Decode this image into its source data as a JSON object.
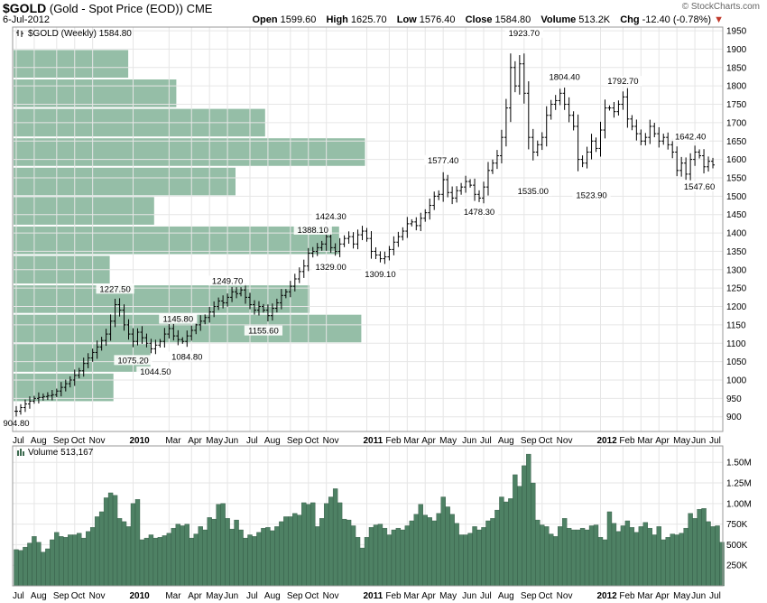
{
  "header": {
    "symbol": "$GOLD",
    "description": "(Gold - Spot Price (EOD))",
    "exchange": "CME",
    "date": "6-Jul-2012",
    "credit": "© StockCharts.com",
    "open_label": "Open",
    "open": "1599.60",
    "high_label": "High",
    "high": "1625.70",
    "low_label": "Low",
    "low": "1576.40",
    "close_label": "Close",
    "close": "1584.80",
    "volume_label": "Volume",
    "volume": "513.2K",
    "chg_label": "Chg",
    "chg": "-12.40 (-0.78%)"
  },
  "chart_data": [
    {
      "type": "ohlc-bar",
      "legend": "$GOLD (Weekly) 1584.80",
      "ylim": [
        860,
        1960
      ],
      "y_ticks": [
        900,
        950,
        1000,
        1050,
        1100,
        1150,
        1200,
        1250,
        1300,
        1350,
        1400,
        1450,
        1500,
        1550,
        1600,
        1650,
        1700,
        1750,
        1800,
        1850,
        1900,
        1950
      ],
      "x_ticks": [
        {
          "label": "Jul",
          "week": 0
        },
        {
          "label": "Aug",
          "week": 4
        },
        {
          "label": "Sep",
          "week": 9
        },
        {
          "label": "Oct",
          "week": 13
        },
        {
          "label": "Nov",
          "week": 17
        },
        {
          "label": "2010",
          "week": 26,
          "bold": true
        },
        {
          "label": "Mar",
          "week": 34
        },
        {
          "label": "Apr",
          "week": 39
        },
        {
          "label": "May",
          "week": 43
        },
        {
          "label": "Jun",
          "week": 47
        },
        {
          "label": "Jul",
          "week": 52
        },
        {
          "label": "Aug",
          "week": 56
        },
        {
          "label": "Sep",
          "week": 61
        },
        {
          "label": "Oct",
          "week": 65
        },
        {
          "label": "Nov",
          "week": 69
        },
        {
          "label": "2011",
          "week": 78,
          "bold": true
        },
        {
          "label": "Feb",
          "week": 83
        },
        {
          "label": "Mar",
          "week": 87
        },
        {
          "label": "Apr",
          "week": 91
        },
        {
          "label": "May",
          "week": 95
        },
        {
          "label": "Jun",
          "week": 100
        },
        {
          "label": "Jul",
          "week": 104
        },
        {
          "label": "Aug",
          "week": 108
        },
        {
          "label": "Sep",
          "week": 113
        },
        {
          "label": "Oct",
          "week": 117
        },
        {
          "label": "Nov",
          "week": 121
        },
        {
          "label": "2012",
          "week": 130,
          "bold": true
        },
        {
          "label": "Feb",
          "week": 135
        },
        {
          "label": "Mar",
          "week": 139
        },
        {
          "label": "Apr",
          "week": 143
        },
        {
          "label": "May",
          "week": 147
        },
        {
          "label": "Jun",
          "week": 151
        },
        {
          "label": "Jul",
          "week": 155
        }
      ],
      "close_path": [
        [
          0,
          915
        ],
        [
          2,
          935
        ],
        [
          4,
          950
        ],
        [
          6,
          955
        ],
        [
          8,
          960
        ],
        [
          10,
          980
        ],
        [
          12,
          1000
        ],
        [
          14,
          1025
        ],
        [
          15,
          1045
        ],
        [
          16,
          1060
        ],
        [
          18,
          1090
        ],
        [
          20,
          1125
        ],
        [
          21,
          1160
        ],
        [
          22,
          1205
        ],
        [
          23,
          1190
        ],
        [
          24,
          1150
        ],
        [
          25,
          1125
        ],
        [
          26,
          1105
        ],
        [
          27,
          1130
        ],
        [
          28,
          1115
        ],
        [
          29,
          1100
        ],
        [
          30,
          1085
        ],
        [
          31,
          1095
        ],
        [
          32,
          1105
        ],
        [
          33,
          1125
        ],
        [
          34,
          1140
        ],
        [
          35,
          1120
        ],
        [
          36,
          1110
        ],
        [
          37,
          1105
        ],
        [
          38,
          1120
        ],
        [
          40,
          1150
        ],
        [
          42,
          1170
        ],
        [
          44,
          1200
        ],
        [
          45,
          1215
        ],
        [
          46,
          1210
        ],
        [
          47,
          1225
        ],
        [
          48,
          1240
        ],
        [
          49,
          1235
        ],
        [
          50,
          1245
        ],
        [
          51,
          1225
        ],
        [
          52,
          1205
        ],
        [
          53,
          1190
        ],
        [
          54,
          1200
        ],
        [
          55,
          1190
        ],
        [
          56,
          1175
        ],
        [
          57,
          1195
        ],
        [
          58,
          1210
        ],
        [
          59,
          1230
        ],
        [
          60,
          1240
        ],
        [
          61,
          1255
        ],
        [
          62,
          1275
        ],
        [
          63,
          1295
        ],
        [
          64,
          1310
        ],
        [
          65,
          1345
        ],
        [
          66,
          1350
        ],
        [
          67,
          1360
        ],
        [
          68,
          1370
        ],
        [
          69,
          1390
        ],
        [
          70,
          1360
        ],
        [
          71,
          1350
        ],
        [
          72,
          1370
        ],
        [
          73,
          1385
        ],
        [
          74,
          1390
        ],
        [
          75,
          1370
        ],
        [
          76,
          1395
        ],
        [
          77,
          1405
        ],
        [
          78,
          1385
        ],
        [
          79,
          1350
        ],
        [
          80,
          1340
        ],
        [
          81,
          1330
        ],
        [
          82,
          1335
        ],
        [
          83,
          1355
        ],
        [
          84,
          1375
        ],
        [
          85,
          1390
        ],
        [
          86,
          1405
        ],
        [
          87,
          1425
        ],
        [
          88,
          1430
        ],
        [
          89,
          1420
        ],
        [
          90,
          1440
        ],
        [
          91,
          1455
        ],
        [
          92,
          1475
        ],
        [
          93,
          1500
        ],
        [
          94,
          1505
        ],
        [
          95,
          1545
        ],
        [
          96,
          1510
        ],
        [
          97,
          1495
        ],
        [
          98,
          1515
        ],
        [
          99,
          1525
        ],
        [
          100,
          1540
        ],
        [
          101,
          1530
        ],
        [
          102,
          1505
        ],
        [
          103,
          1495
        ],
        [
          104,
          1525
        ],
        [
          105,
          1570
        ],
        [
          106,
          1590
        ],
        [
          107,
          1610
        ],
        [
          108,
          1660
        ],
        [
          109,
          1740
        ],
        [
          110,
          1850
        ],
        [
          111,
          1800
        ],
        [
          112,
          1860
        ],
        [
          113,
          1780
        ],
        [
          114,
          1660
        ],
        [
          115,
          1620
        ],
        [
          116,
          1640
        ],
        [
          117,
          1660
        ],
        [
          118,
          1720
        ],
        [
          119,
          1750
        ],
        [
          120,
          1760
        ],
        [
          121,
          1780
        ],
        [
          122,
          1750
        ],
        [
          123,
          1720
        ],
        [
          124,
          1690
        ],
        [
          125,
          1600
        ],
        [
          126,
          1590
        ],
        [
          127,
          1620
        ],
        [
          128,
          1650
        ],
        [
          129,
          1630
        ],
        [
          130,
          1680
        ],
        [
          131,
          1740
        ],
        [
          132,
          1740
        ],
        [
          133,
          1730
        ],
        [
          134,
          1750
        ],
        [
          135,
          1770
        ],
        [
          136,
          1710
        ],
        [
          137,
          1690
        ],
        [
          138,
          1670
        ],
        [
          139,
          1650
        ],
        [
          140,
          1660
        ],
        [
          141,
          1690
        ],
        [
          142,
          1670
        ],
        [
          143,
          1650
        ],
        [
          144,
          1660
        ],
        [
          145,
          1640
        ],
        [
          146,
          1620
        ],
        [
          147,
          1570
        ],
        [
          148,
          1590
        ],
        [
          149,
          1560
        ],
        [
          150,
          1600
        ],
        [
          151,
          1620
        ],
        [
          152,
          1610
        ],
        [
          153,
          1580
        ],
        [
          154,
          1595
        ],
        [
          155,
          1585
        ]
      ],
      "annotations": [
        {
          "text": "904.80",
          "week": 0,
          "value": 904.8,
          "pos": "below"
        },
        {
          "text": "1227.50",
          "week": 22,
          "value": 1227.5,
          "pos": "above"
        },
        {
          "text": "1075.20",
          "week": 26,
          "value": 1075.2,
          "pos": "below"
        },
        {
          "text": "1044.50",
          "week": 31,
          "value": 1044.5,
          "pos": "below"
        },
        {
          "text": "1145.80",
          "week": 36,
          "value": 1145.8,
          "pos": "above"
        },
        {
          "text": "1084.80",
          "week": 38,
          "value": 1084.8,
          "pos": "below"
        },
        {
          "text": "1249.70",
          "week": 47,
          "value": 1249.7,
          "pos": "above"
        },
        {
          "text": "1155.60",
          "week": 55,
          "value": 1155.6,
          "pos": "below"
        },
        {
          "text": "1388.10",
          "week": 66,
          "value": 1388.1,
          "pos": "above"
        },
        {
          "text": "1424.30",
          "week": 70,
          "value": 1424.3,
          "pos": "above"
        },
        {
          "text": "1329.00",
          "week": 70,
          "value": 1329,
          "pos": "below"
        },
        {
          "text": "1309.10",
          "week": 81,
          "value": 1309.1,
          "pos": "below"
        },
        {
          "text": "1577.40",
          "week": 95,
          "value": 1577.4,
          "pos": "above"
        },
        {
          "text": "1478.30",
          "week": 103,
          "value": 1478.3,
          "pos": "below"
        },
        {
          "text": "1923.70",
          "week": 113,
          "value": 1923.7,
          "pos": "above"
        },
        {
          "text": "1535.00",
          "week": 115,
          "value": 1535,
          "pos": "below"
        },
        {
          "text": "1804.40",
          "week": 122,
          "value": 1804.4,
          "pos": "above"
        },
        {
          "text": "1523.90",
          "week": 128,
          "value": 1523.9,
          "pos": "below"
        },
        {
          "text": "1792.70",
          "week": 135,
          "value": 1792.7,
          "pos": "above"
        },
        {
          "text": "1642.40",
          "week": 150,
          "value": 1642.4,
          "pos": "above"
        },
        {
          "text": "1547.60",
          "week": 152,
          "value": 1547.6,
          "pos": "below"
        }
      ],
      "volume_by_price": [
        {
          "low": 940,
          "high": 1020,
          "level": 0.27
        },
        {
          "low": 1020,
          "high": 1100,
          "level": 0.37
        },
        {
          "low": 1100,
          "high": 1180,
          "level": 0.94
        },
        {
          "low": 1180,
          "high": 1260,
          "level": 0.8
        },
        {
          "low": 1260,
          "high": 1340,
          "level": 0.26
        },
        {
          "low": 1340,
          "high": 1420,
          "level": 0.88
        },
        {
          "low": 1420,
          "high": 1500,
          "level": 0.38
        },
        {
          "low": 1500,
          "high": 1580,
          "level": 0.6
        },
        {
          "low": 1580,
          "high": 1660,
          "level": 0.95
        },
        {
          "low": 1660,
          "high": 1740,
          "level": 0.68
        },
        {
          "low": 1740,
          "high": 1820,
          "level": 0.44
        },
        {
          "low": 1820,
          "high": 1900,
          "level": 0.31
        }
      ]
    },
    {
      "type": "bar",
      "legend": "Volume 513,167",
      "ylim": [
        0,
        1700000
      ],
      "y_ticks": [
        {
          "label": "250K",
          "value": 250000
        },
        {
          "label": "500K",
          "value": 500000
        },
        {
          "label": "750K",
          "value": 750000
        },
        {
          "label": "1.00M",
          "value": 1000000
        },
        {
          "label": "1.25M",
          "value": 1250000
        },
        {
          "label": "1.50M",
          "value": 1500000
        }
      ],
      "values": [
        440000,
        430000,
        470000,
        520000,
        600000,
        530000,
        410000,
        450000,
        560000,
        650000,
        600000,
        590000,
        620000,
        620000,
        640000,
        580000,
        660000,
        710000,
        840000,
        900000,
        1070000,
        1130000,
        1100000,
        820000,
        780000,
        720000,
        1000000,
        1050000,
        560000,
        580000,
        620000,
        580000,
        590000,
        610000,
        640000,
        700000,
        750000,
        730000,
        750000,
        580000,
        630000,
        720000,
        680000,
        830000,
        810000,
        990000,
        1000000,
        820000,
        690000,
        800000,
        680000,
        580000,
        620000,
        600000,
        650000,
        700000,
        710000,
        670000,
        720000,
        780000,
        840000,
        840000,
        880000,
        860000,
        1010000,
        990000,
        1010000,
        720000,
        820000,
        1000000,
        1080000,
        1180000,
        1010000,
        810000,
        800000,
        730000,
        590000,
        460000,
        590000,
        710000,
        740000,
        750000,
        700000,
        620000,
        680000,
        700000,
        680000,
        730000,
        790000,
        870000,
        990000,
        860000,
        830000,
        790000,
        880000,
        1080000,
        960000,
        870000,
        760000,
        620000,
        620000,
        640000,
        720000,
        680000,
        710000,
        790000,
        820000,
        920000,
        1080000,
        1020000,
        1060000,
        1350000,
        1210000,
        1460000,
        1600000,
        1250000,
        800000,
        740000,
        720000,
        630000,
        600000,
        720000,
        820000,
        700000,
        680000,
        680000,
        700000,
        680000,
        730000,
        740000,
        590000,
        560000,
        900000,
        760000,
        660000,
        730000,
        790000,
        710000,
        650000,
        720000,
        770000,
        700000,
        620000,
        720000,
        560000,
        590000,
        630000,
        620000,
        640000,
        700000,
        880000,
        820000,
        930000,
        940000,
        780000,
        720000,
        730000,
        530000
      ]
    }
  ]
}
